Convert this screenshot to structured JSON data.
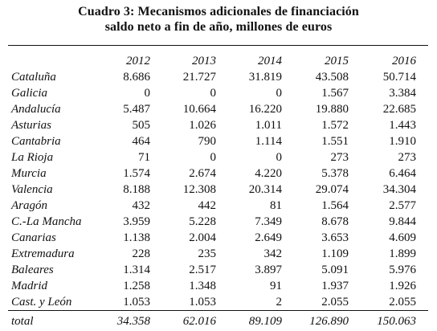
{
  "title_line1": "Cuadro 3: Mecanismos adicionales de financiación",
  "title_line2": "saldo neto a fin de año, millones de euros",
  "columns": [
    "2012",
    "2013",
    "2014",
    "2015",
    "2016"
  ],
  "rows": [
    {
      "region": "Cataluña",
      "values": [
        "8.686",
        "21.727",
        "31.819",
        "43.508",
        "50.714"
      ]
    },
    {
      "region": "Galicia",
      "values": [
        "0",
        "0",
        "0",
        "1.567",
        "3.384"
      ]
    },
    {
      "region": "Andalucía",
      "values": [
        "5.487",
        "10.664",
        "16.220",
        "19.880",
        "22.685"
      ]
    },
    {
      "region": "Asturias",
      "values": [
        "505",
        "1.026",
        "1.011",
        "1.572",
        "1.443"
      ]
    },
    {
      "region": "Cantabria",
      "values": [
        "464",
        "790",
        "1.114",
        "1.551",
        "1.910"
      ]
    },
    {
      "region": "La Rioja",
      "values": [
        "71",
        "0",
        "0",
        "273",
        "273"
      ]
    },
    {
      "region": "Murcia",
      "values": [
        "1.574",
        "2.674",
        "4.220",
        "5.378",
        "6.464"
      ]
    },
    {
      "region": "Valencia",
      "values": [
        "8.188",
        "12.308",
        "20.314",
        "29.074",
        "34.304"
      ]
    },
    {
      "region": "Aragón",
      "values": [
        "432",
        "442",
        "81",
        "1.564",
        "2.577"
      ]
    },
    {
      "region": "C.-La Mancha",
      "values": [
        "3.959",
        "5.228",
        "7.349",
        "8.678",
        "9.844"
      ]
    },
    {
      "region": "Canarias",
      "values": [
        "1.138",
        "2.004",
        "2.649",
        "3.653",
        "4.609"
      ]
    },
    {
      "region": "Extremadura",
      "values": [
        "228",
        "235",
        "342",
        "1.109",
        "1.899"
      ]
    },
    {
      "region": "Baleares",
      "values": [
        "1.314",
        "2.517",
        "3.897",
        "5.091",
        "5.976"
      ]
    },
    {
      "region": "Madrid",
      "values": [
        "1.258",
        "1.348",
        "91",
        "1.937",
        "1.926"
      ]
    },
    {
      "region": "Cast. y León",
      "values": [
        "1.053",
        "1.053",
        "2",
        "2.055",
        "2.055"
      ]
    }
  ],
  "total": {
    "label": "total",
    "values": [
      "34.358",
      "62.016",
      "89.109",
      "126.890",
      "150.063"
    ]
  }
}
